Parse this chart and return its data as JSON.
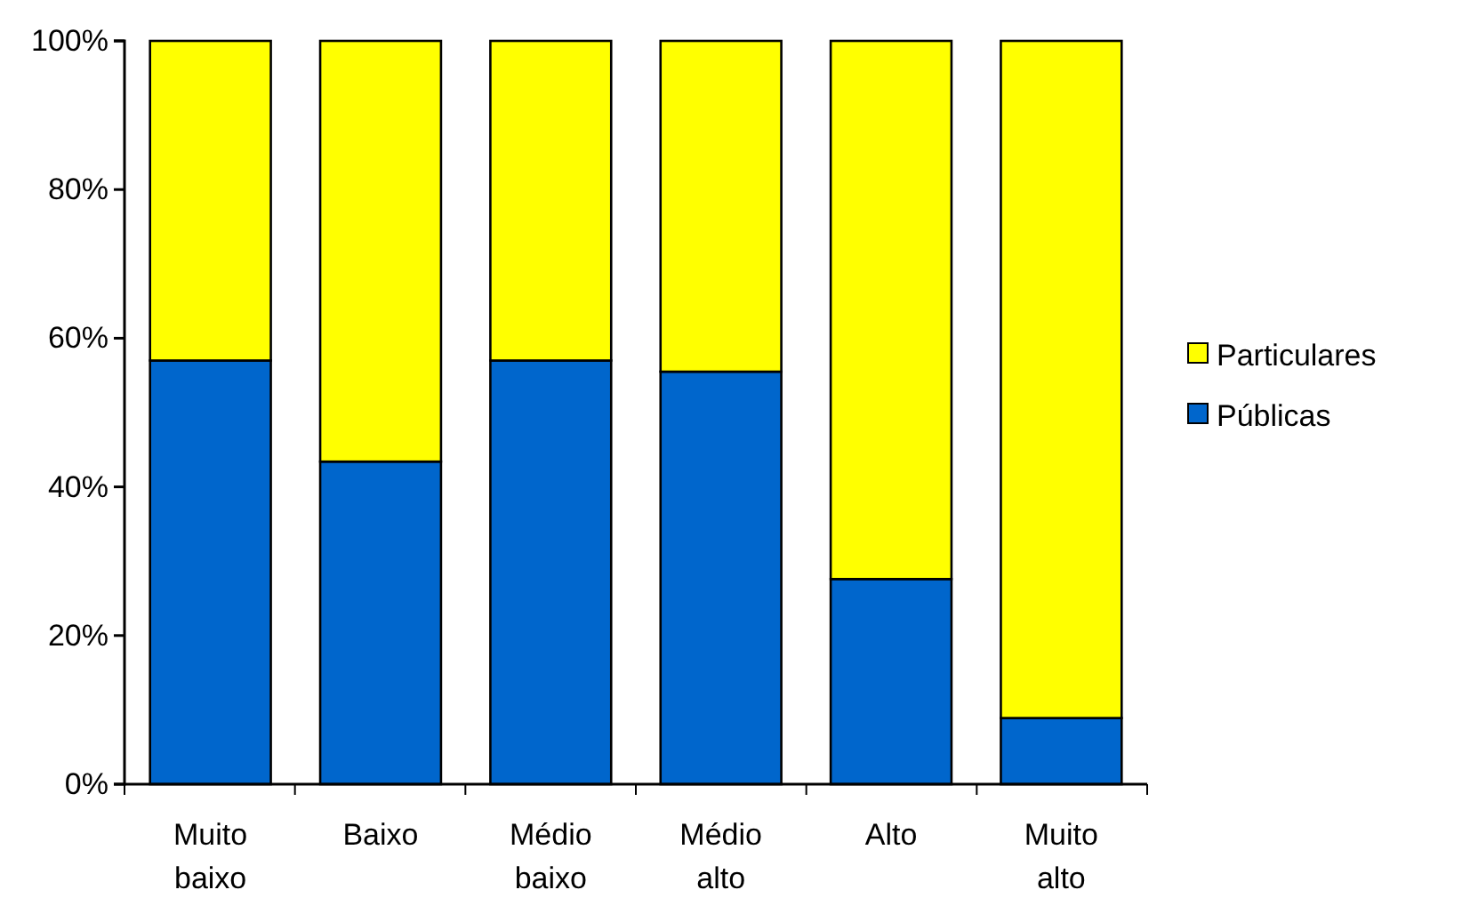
{
  "chart_data": {
    "type": "bar",
    "stacked": true,
    "categories": [
      "Muito baixo",
      "Baixo",
      "Médio baixo",
      "Médio alto",
      "Alto",
      "Muito alto"
    ],
    "series": [
      {
        "name": "Públicas",
        "color": "#0066cc",
        "values": [
          57,
          43.4,
          57,
          55.5,
          27.6,
          8.9
        ]
      },
      {
        "name": "Particulares",
        "color": "#ffff00",
        "values": [
          43,
          56.6,
          43,
          44.5,
          72.4,
          91.1
        ]
      }
    ],
    "ylim": [
      0,
      100
    ],
    "yticks": [
      {
        "value": 0,
        "label": "0%"
      },
      {
        "value": 20,
        "label": "20%"
      },
      {
        "value": 40,
        "label": "40%"
      },
      {
        "value": 60,
        "label": "60%"
      },
      {
        "value": 80,
        "label": "80%"
      },
      {
        "value": 100,
        "label": "100%"
      }
    ],
    "legend": "right"
  }
}
